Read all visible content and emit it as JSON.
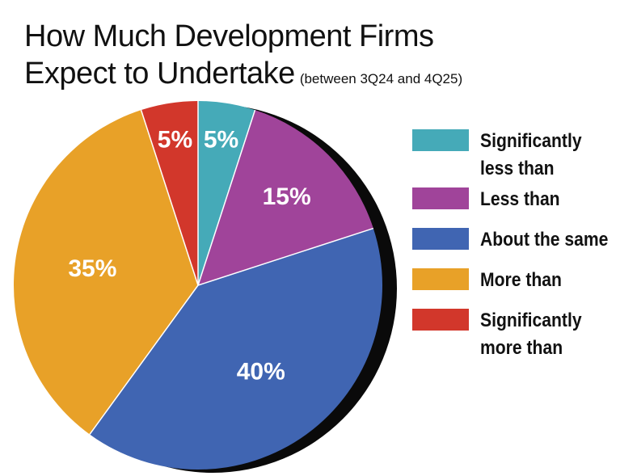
{
  "header": {
    "title_line1": "How Much Development Firms",
    "title_line2": "Expect to Undertake",
    "subtitle": "(between 3Q24 and 4Q25)"
  },
  "chart_data": {
    "type": "pie",
    "title": "How Much Development Firms Expect to Undertake",
    "subtitle": "(between 3Q24 and 4Q25)",
    "legend_position": "right",
    "slices": [
      {
        "label": "Significantly less than",
        "value": 5,
        "display": "5%",
        "color": "#45aab8"
      },
      {
        "label": "Less than",
        "value": 15,
        "display": "15%",
        "color": "#a0449a"
      },
      {
        "label": "About the same",
        "value": 40,
        "display": "40%",
        "color": "#4065b2"
      },
      {
        "label": "More than",
        "value": 35,
        "display": "35%",
        "color": "#e8a128"
      },
      {
        "label": "Significantly more than",
        "value": 5,
        "display": "5%",
        "color": "#d2372b"
      }
    ]
  },
  "legend": {
    "items": [
      {
        "label": "Significantly less than",
        "color": "#45aab8"
      },
      {
        "label": "Less than",
        "color": "#a0449a"
      },
      {
        "label": "About the same",
        "color": "#4065b2"
      },
      {
        "label": "More than",
        "color": "#e8a128"
      },
      {
        "label": "Significantly more than",
        "color": "#d2372b"
      }
    ]
  }
}
